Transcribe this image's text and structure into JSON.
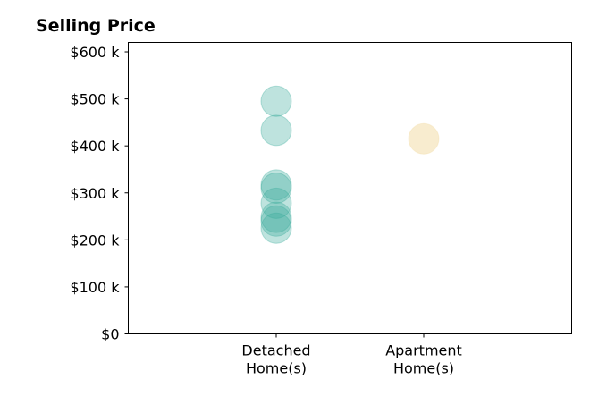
{
  "chart_data": {
    "type": "scatter",
    "title": "Selling Price",
    "categories": [
      [
        "Detached",
        "Home(s)"
      ],
      [
        "Apartment",
        "Home(s)"
      ]
    ],
    "ylim": [
      0,
      620000
    ],
    "yticks": [
      {
        "value": 0,
        "label": "$0"
      },
      {
        "value": 100000,
        "label": "$100 k"
      },
      {
        "value": 200000,
        "label": "$200 k"
      },
      {
        "value": 300000,
        "label": "$300 k"
      },
      {
        "value": 400000,
        "label": "$400 k"
      },
      {
        "value": 500000,
        "label": "$500 k"
      },
      {
        "value": 600000,
        "label": "$600 k"
      }
    ],
    "grid": false,
    "series": [
      {
        "category_index": 0,
        "color": "#3aab9c",
        "values": [
          495000,
          433000,
          317000,
          310000,
          278000,
          248000,
          240000,
          225000
        ]
      },
      {
        "category_index": 1,
        "color": "#f2d9a0",
        "values": [
          415000
        ]
      }
    ]
  }
}
